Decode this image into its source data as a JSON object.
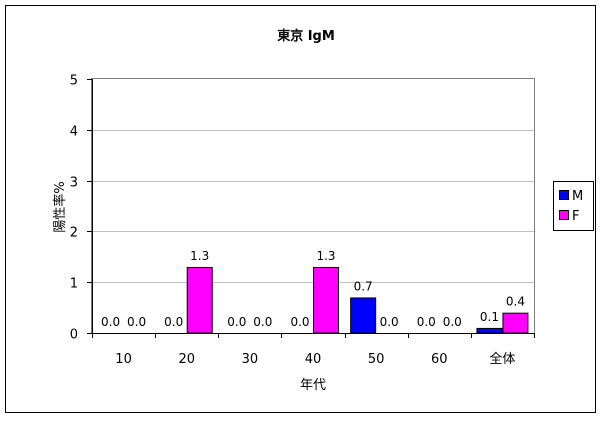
{
  "chart_data": {
    "type": "bar",
    "title": "東京 IgM",
    "xlabel": "年代",
    "ylabel": "陽性率%",
    "ylim": [
      0,
      5
    ],
    "yticks": [
      "0",
      "1",
      "2",
      "3",
      "4",
      "5"
    ],
    "categories": [
      "10",
      "20",
      "30",
      "40",
      "50",
      "60",
      "全体"
    ],
    "series": [
      {
        "name": "M",
        "color": "#0000FF",
        "values": [
          0.0,
          0.0,
          0.0,
          0.0,
          0.7,
          0.0,
          0.1
        ],
        "labels": [
          "0.0",
          "0.0",
          "0.0",
          "0.0",
          "0.7",
          "0.0",
          "0.1"
        ]
      },
      {
        "name": "F",
        "color": "#FF00FF",
        "values": [
          0.0,
          1.3,
          0.0,
          1.3,
          0.0,
          0.0,
          0.4
        ],
        "labels": [
          "0.0",
          "1.3",
          "0.0",
          "1.3",
          "0.0",
          "0.0",
          "0.4"
        ]
      }
    ],
    "grid": true,
    "legend": "right"
  }
}
